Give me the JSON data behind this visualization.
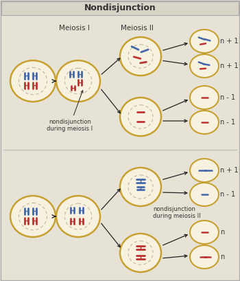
{
  "title": "Nondisjunction",
  "title_bg": "#d8d4c8",
  "bg_color": "#e6e2d6",
  "cell_bg": "#f7f2e0",
  "cell_border": "#c8a030",
  "spindle_color": "#c0b898",
  "blue_chr": "#4466aa",
  "red_chr": "#bb3333",
  "arrow_color": "#222222",
  "text_color": "#333333",
  "label_meiosis1": "Meiosis I",
  "label_meiosis2": "Meiosis II",
  "label_nondisjunction1": "nondisjunction\nduring meiosis I",
  "label_nondisjunction2": "nondisjunction\nduring meiosis II",
  "result_labels_top": [
    "n + 1",
    "n + 1",
    "n - 1",
    "n - 1"
  ],
  "result_labels_bot": [
    "n + 1",
    "n - 1",
    "n",
    "n"
  ],
  "border_color": "#aaaaaa",
  "divider_color": "#bbbbbb"
}
